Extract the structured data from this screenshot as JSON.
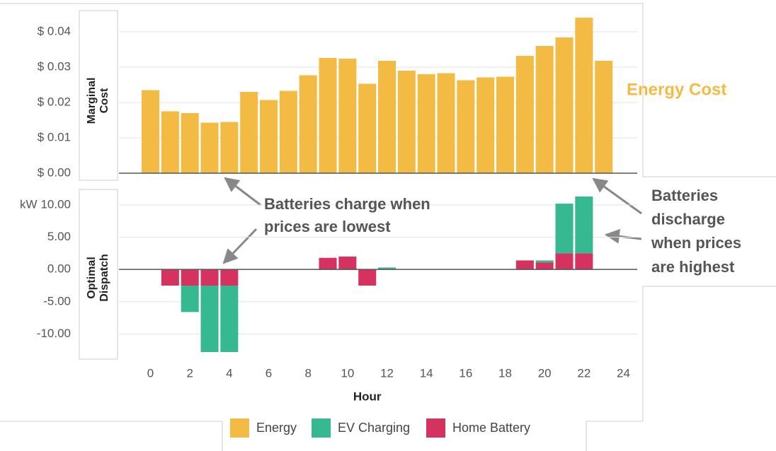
{
  "chart_data": [
    {
      "type": "bar",
      "ylabel": [
        "Marginal",
        "Cost"
      ],
      "side_label": "Energy Cost",
      "x": [
        0,
        1,
        2,
        3,
        4,
        5,
        6,
        7,
        8,
        9,
        10,
        11,
        12,
        13,
        14,
        15,
        16,
        17,
        18,
        19,
        20,
        21,
        22,
        23
      ],
      "series": [
        {
          "name": "Energy",
          "color": "#f4bb44",
          "values": [
            0.0235,
            0.0175,
            0.017,
            0.0143,
            0.0145,
            0.023,
            0.0207,
            0.0233,
            0.0277,
            0.0326,
            0.0324,
            0.0253,
            0.0318,
            0.029,
            0.028,
            0.0283,
            0.0263,
            0.0271,
            0.0273,
            0.0332,
            0.036,
            0.0384,
            0.044,
            0.0318
          ]
        }
      ],
      "xlim": [
        -1.6,
        24.7
      ],
      "ylim": [
        0,
        0.045
      ],
      "yticks": [
        {
          "value": 0,
          "label": "$ 0.00"
        },
        {
          "value": 0.01,
          "label": "$ 0.01"
        },
        {
          "value": 0.02,
          "label": "$ 0.02"
        },
        {
          "value": 0.03,
          "label": "$ 0.03"
        },
        {
          "value": 0.04,
          "label": "$ 0.04"
        }
      ],
      "grid": true
    },
    {
      "type": "stacked_bar",
      "ylabel": [
        "Optimal",
        "Dispatch"
      ],
      "y_unit": "kW",
      "xlabel": "Hour",
      "x": [
        0,
        1,
        2,
        3,
        4,
        5,
        6,
        7,
        8,
        9,
        10,
        11,
        12,
        13,
        14,
        15,
        16,
        17,
        18,
        19,
        20,
        21,
        22,
        23
      ],
      "series": [
        {
          "name": "EV Charging",
          "color": "#36b890",
          "values": [
            0,
            0,
            -4.1,
            -10.3,
            -10.3,
            0,
            0,
            0,
            0,
            0,
            0,
            0,
            0.3,
            0,
            0,
            0,
            0,
            0,
            0,
            0,
            0.3,
            7.7,
            8.8,
            0
          ]
        },
        {
          "name": "Home Battery",
          "color": "#d6325f",
          "values": [
            0,
            -2.5,
            -2.5,
            -2.5,
            -2.5,
            0,
            0,
            0,
            0,
            1.8,
            2.0,
            -2.5,
            0,
            0,
            0,
            0,
            0,
            0,
            0,
            1.4,
            1.1,
            2.5,
            2.5,
            0
          ]
        }
      ],
      "xlim": [
        -1.6,
        24.7
      ],
      "ylim": [
        -12.8,
        12.4
      ],
      "yticks": [
        {
          "value": -10,
          "label": "-10.00"
        },
        {
          "value": -5,
          "label": "-5.00"
        },
        {
          "value": 0,
          "label": "0.00"
        },
        {
          "value": 5,
          "label": "5.00"
        },
        {
          "value": 10,
          "label": "10.00"
        }
      ],
      "xticks": [
        0,
        2,
        4,
        6,
        8,
        10,
        12,
        14,
        16,
        18,
        20,
        22,
        24
      ],
      "grid": true
    }
  ],
  "annotations": [
    {
      "lines": [
        "Batteries charge when",
        "prices are lowest"
      ]
    },
    {
      "lines": [
        "Batteries",
        "discharge",
        "when prices",
        "are highest"
      ]
    }
  ]
}
